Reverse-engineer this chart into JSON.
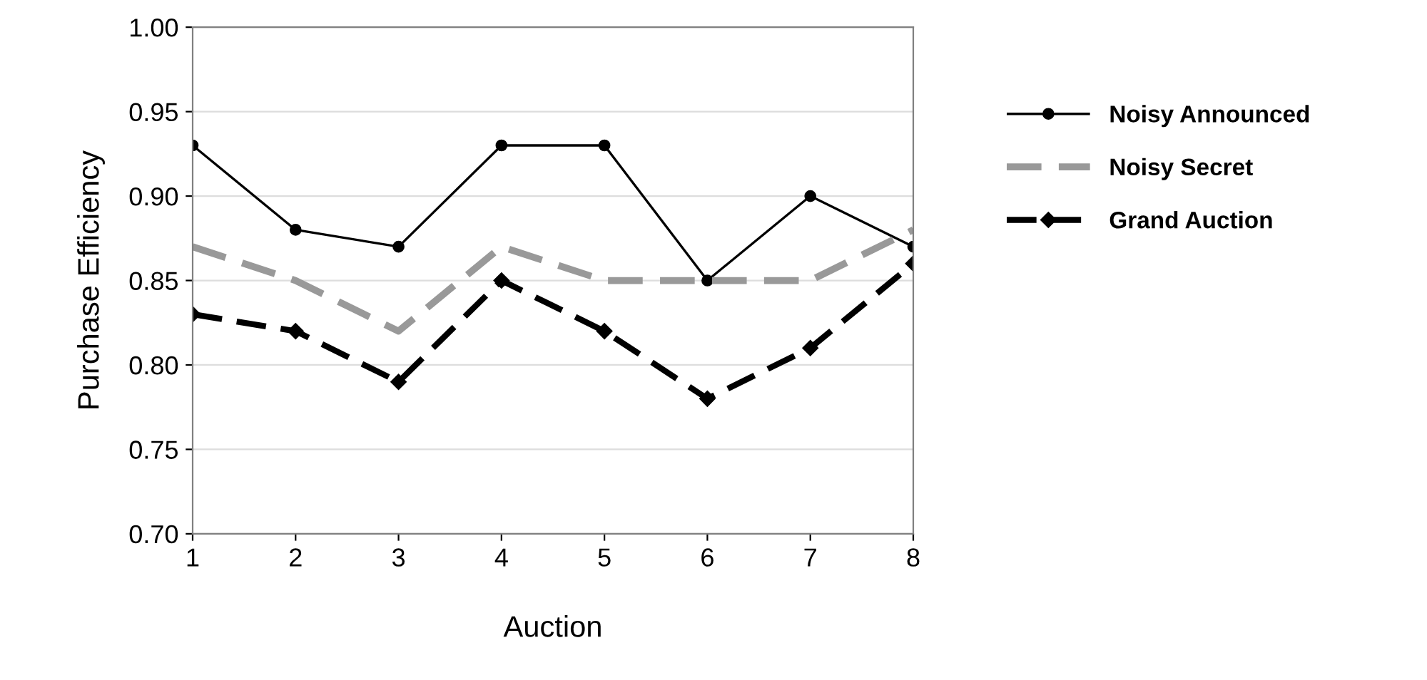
{
  "chart_data": {
    "type": "line",
    "xlabel": "Auction",
    "ylabel": "Purchase Efficiency",
    "categories": [
      "1",
      "2",
      "3",
      "4",
      "5",
      "6",
      "7",
      "8"
    ],
    "series": [
      {
        "name": "Noisy Announced",
        "color": "#000000",
        "marker": "circle",
        "line_style": "solid",
        "values": [
          0.93,
          0.88,
          0.87,
          0.93,
          0.93,
          0.85,
          0.9,
          0.87
        ]
      },
      {
        "name": "Noisy Secret",
        "color": "#999999",
        "marker": "none",
        "line_style": "dashed",
        "values": [
          0.87,
          0.85,
          0.82,
          0.87,
          0.85,
          0.85,
          0.85,
          0.88
        ]
      },
      {
        "name": "Grand Auction",
        "color": "#000000",
        "marker": "diamond",
        "line_style": "dashed",
        "values": [
          0.83,
          0.82,
          0.79,
          0.85,
          0.82,
          0.78,
          0.81,
          0.86
        ]
      }
    ],
    "ylim": [
      0.7,
      1.0
    ],
    "yticks": [
      {
        "value": 0.7,
        "label": "0.70"
      },
      {
        "value": 0.75,
        "label": "0.75"
      },
      {
        "value": 0.8,
        "label": "0.80"
      },
      {
        "value": 0.85,
        "label": "0.85"
      },
      {
        "value": 0.9,
        "label": "0.90"
      },
      {
        "value": 0.95,
        "label": "0.95"
      },
      {
        "value": 1.0,
        "label": "1.00"
      }
    ],
    "grid": "y",
    "legend": "right"
  }
}
